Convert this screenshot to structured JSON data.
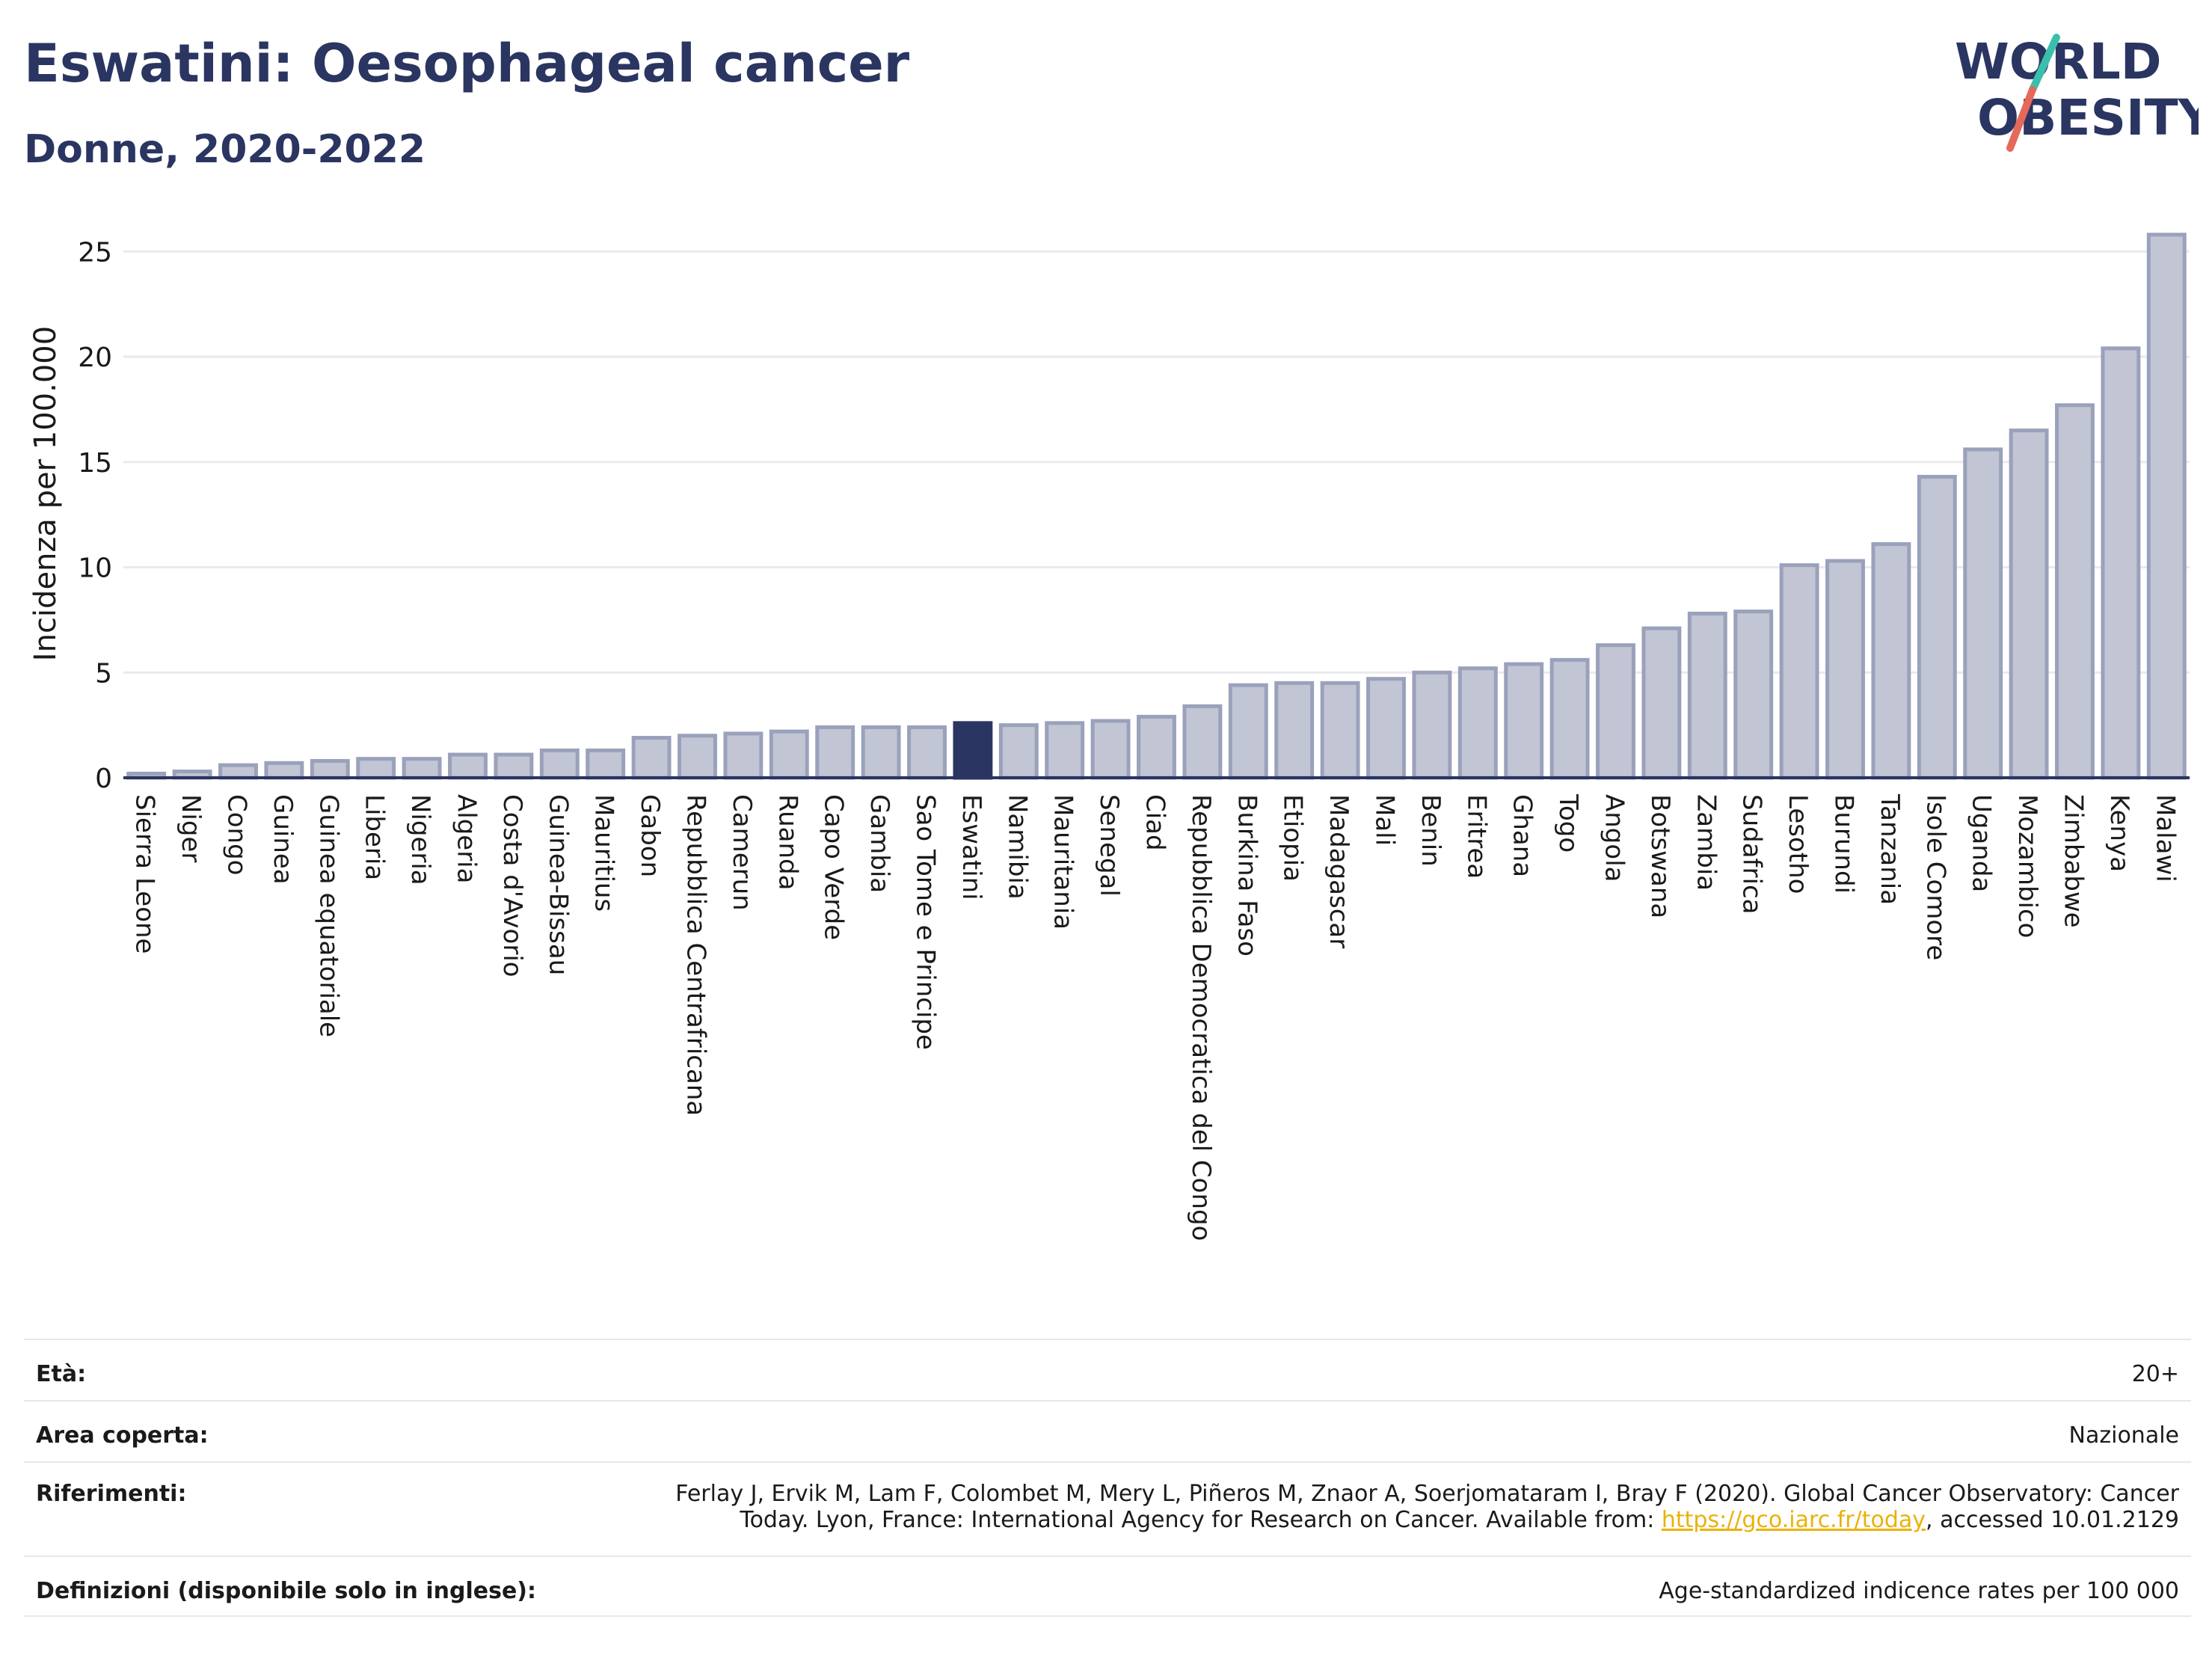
{
  "header": {
    "title": "Eswatini: Oesophageal cancer",
    "subtitle": "Donne, 2020-2022"
  },
  "logo": {
    "line1": "WORLD",
    "line2": "OBESITY"
  },
  "colors": {
    "bar": "#c1c5d4",
    "bar_stroke": "#9aa1bb",
    "highlight": "#2a3561",
    "axis": "#2a3561",
    "grid": "#e8eaee"
  },
  "chart_data": {
    "type": "bar",
    "ylabel": "Incidenza per 100.000",
    "ylim": [
      0,
      27
    ],
    "yticks": [
      0,
      5,
      10,
      15,
      20,
      25
    ],
    "grid": true,
    "highlight": "Eswatini",
    "categories": [
      "Sierra Leone",
      "Niger",
      "Congo",
      "Guinea",
      "Guinea equatoriale",
      "Liberia",
      "Nigeria",
      "Algeria",
      "Costa d'Avorio",
      "Guinea-Bissau",
      "Mauritius",
      "Gabon",
      "Repubblica Centrafricana",
      "Camerun",
      "Ruanda",
      "Capo Verde",
      "Gambia",
      "Sao Tome e Principe",
      "Eswatini",
      "Namibia",
      "Mauritania",
      "Senegal",
      "Ciad",
      "Repubblica Democratica del Congo",
      "Burkina Faso",
      "Etiopia",
      "Madagascar",
      "Mali",
      "Benin",
      "Eritrea",
      "Ghana",
      "Togo",
      "Angola",
      "Botswana",
      "Zambia",
      "Sudafrica",
      "Lesotho",
      "Burundi",
      "Tanzania",
      "Isole Comore",
      "Uganda",
      "Mozambico",
      "Zimbabwe",
      "Kenya",
      "Malawi"
    ],
    "values": [
      0.2,
      0.3,
      0.6,
      0.7,
      0.8,
      0.9,
      0.9,
      1.1,
      1.1,
      1.3,
      1.3,
      1.9,
      2.0,
      2.1,
      2.2,
      2.4,
      2.4,
      2.4,
      2.6,
      2.5,
      2.6,
      2.7,
      2.9,
      3.4,
      4.4,
      4.5,
      4.5,
      4.7,
      5.0,
      5.2,
      5.4,
      5.6,
      6.3,
      7.1,
      7.8,
      7.9,
      10.1,
      10.3,
      11.1,
      14.3,
      15.6,
      16.5,
      17.7,
      20.4,
      25.8
    ]
  },
  "info": {
    "age_label": "Età:",
    "age_value": "20+",
    "area_label": "Area coperta:",
    "area_value": "Nazionale",
    "ref_label": "Riferimenti:",
    "ref_line1": "Ferlay J, Ervik M, Lam F, Colombet M, Mery L, Piñeros M, Znaor A, Soerjomataram I, Bray F (2020). Global Cancer Observatory: Cancer",
    "ref_line2_pre": "Today. Lyon, France: International Agency for Research on Cancer. Available from: ",
    "ref_link": "https://gco.iarc.fr/today",
    "ref_line2_post": ", accessed 10.01.2129",
    "def_label": "Definizioni (disponibile solo in inglese):",
    "def_value": "Age-standardized indicence rates per 100 000"
  }
}
